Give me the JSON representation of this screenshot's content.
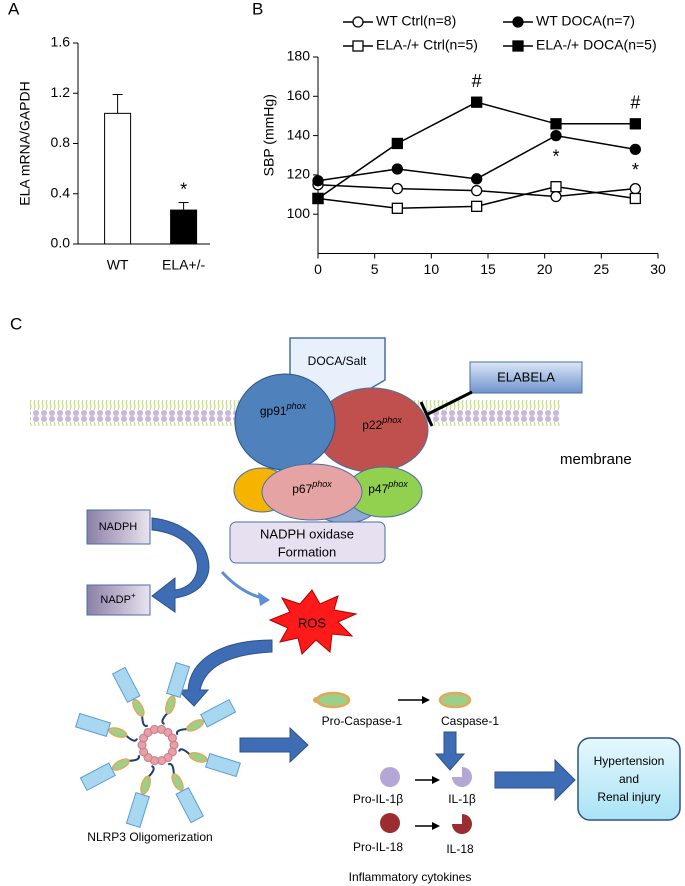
{
  "chart_data": [
    {
      "type": "bar",
      "panel": "A",
      "ylabel": "ELA mRNA/GAPDH",
      "categories": [
        "WT",
        "ELA+/-"
      ],
      "values": [
        1.04,
        0.27
      ],
      "errors": [
        0.15,
        0.06
      ],
      "colors": [
        "#ffffff",
        "#000000"
      ],
      "ylim": [
        0,
        1.6
      ],
      "yticks": [
        {
          "value": 0,
          "label": "0.0"
        },
        0.4,
        0.8,
        1.2,
        1.6
      ],
      "annotations": [
        {
          "text": "*",
          "category": 1
        }
      ]
    },
    {
      "type": "line",
      "panel": "B",
      "ylabel": "SBP (mmHg)",
      "x": [
        0,
        7,
        14,
        21,
        28
      ],
      "series": [
        {
          "name": "WT Ctrl(n=8)",
          "color": "#000000",
          "marker": "circle",
          "filled": false,
          "values": [
            115,
            113,
            112,
            109,
            113
          ]
        },
        {
          "name": "WT DOCA(n=7)",
          "color": "#000000",
          "marker": "circle",
          "filled": true,
          "values": [
            117,
            123,
            118,
            140,
            133
          ]
        },
        {
          "name": "ELA-/+ Ctrl(n=5)",
          "color": "#000000",
          "marker": "square",
          "filled": false,
          "values": [
            108,
            103,
            104,
            114,
            108
          ]
        },
        {
          "name": "ELA-/+ DOCA(n=5)",
          "color": "#000000",
          "marker": "square",
          "filled": true,
          "values": [
            108,
            136,
            157,
            146,
            146
          ]
        }
      ],
      "xlim": [
        0,
        30
      ],
      "xticks": [
        0,
        5,
        10,
        15,
        20,
        25,
        30
      ],
      "ylim": [
        80,
        180
      ],
      "yticks": [
        100,
        120,
        140,
        160,
        180
      ],
      "annotations": [
        {
          "text": "#",
          "series": 3,
          "point": 2,
          "side": "above"
        },
        {
          "text": "#",
          "series": 3,
          "point": 4,
          "side": "above"
        },
        {
          "text": "*",
          "series": 1,
          "point": 3,
          "side": "below"
        },
        {
          "text": "*",
          "series": 1,
          "point": 4,
          "side": "below"
        }
      ]
    }
  ],
  "diagram": {
    "panel": "C",
    "stimulus": "DOCA/Salt",
    "inhibitor": "ELABELA",
    "membrane": "membrane",
    "subunits": [
      {
        "base": "gp91",
        "sup": "phox"
      },
      {
        "base": "p22",
        "sup": "phox"
      },
      {
        "base": "p67",
        "sup": "phox"
      },
      {
        "base": "p47",
        "sup": "phox"
      }
    ],
    "complex": [
      "NADPH oxidase",
      "Formation"
    ],
    "substrate": "NADPH",
    "product": {
      "base": "NADP",
      "sup": "+"
    },
    "ros": "ROS",
    "oligomer": "NLRP3 Oligomerization",
    "caspase": [
      "Pro-Caspase-1",
      "Caspase-1"
    ],
    "cytokines": [
      [
        "Pro-IL-1β",
        "IL-1β"
      ],
      [
        "Pro-IL-18",
        "IL-18"
      ]
    ],
    "cytokine_group": "Inflammatory cytokines",
    "outcome": [
      "Hypertension",
      "and",
      "Renal injury"
    ]
  }
}
